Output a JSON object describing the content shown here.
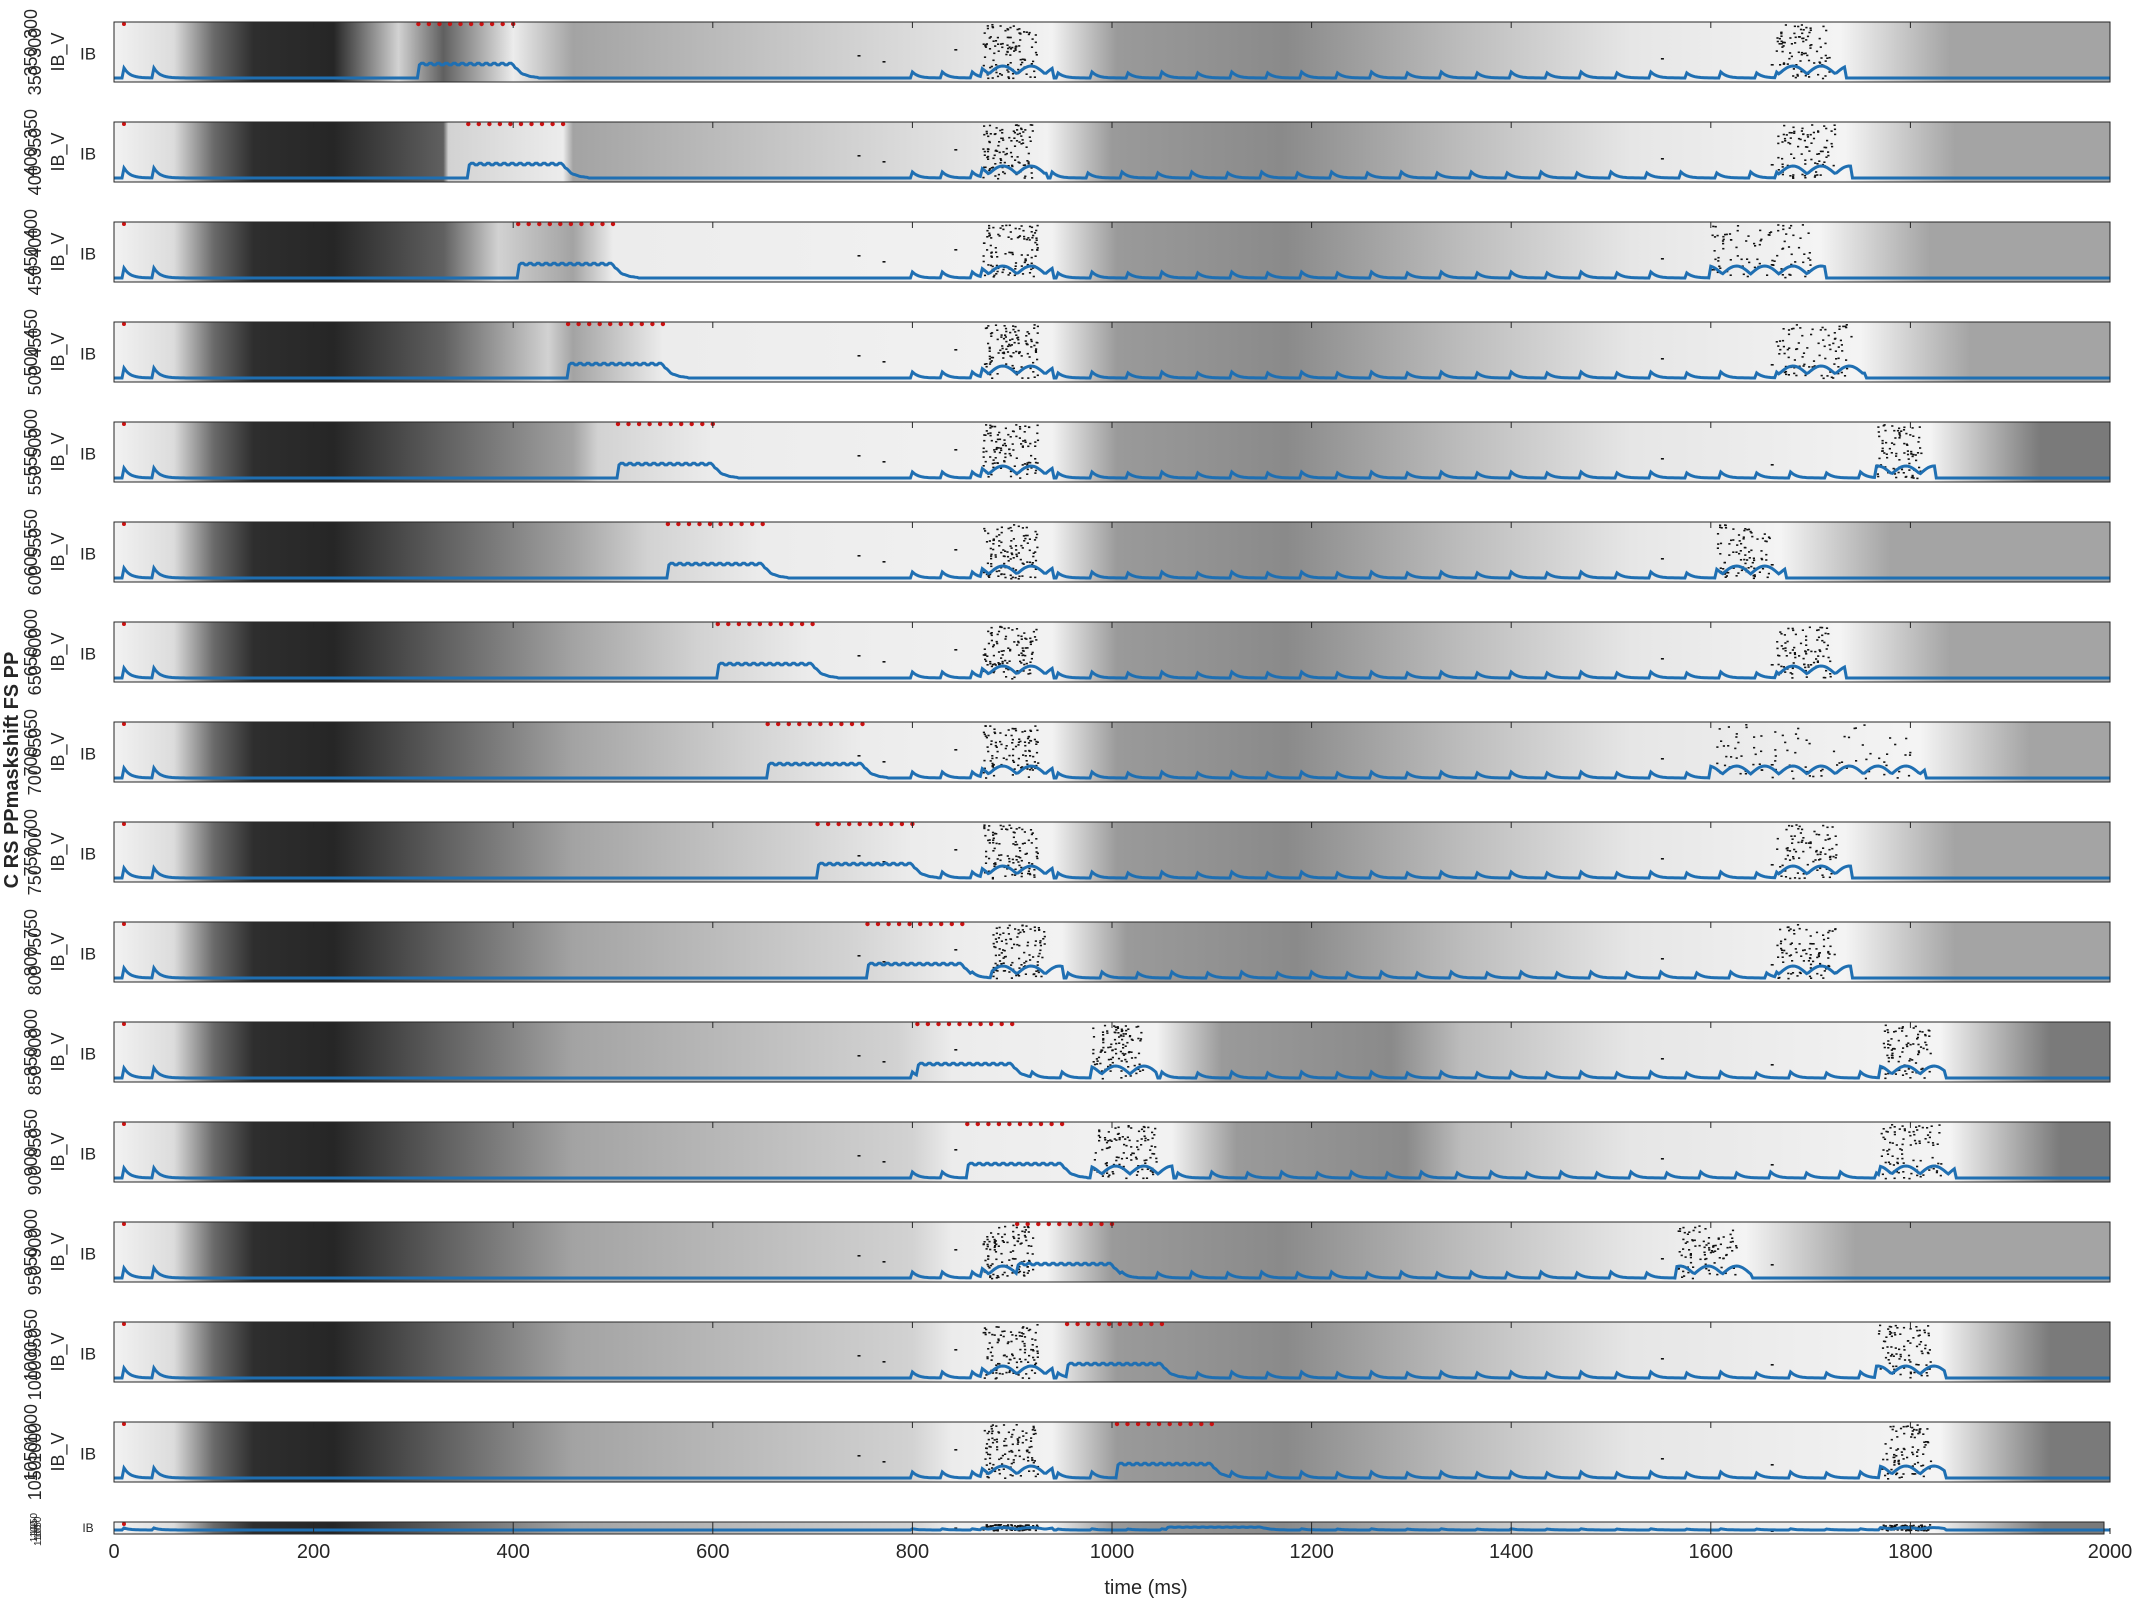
{
  "chart_data": {
    "type": "heatmap",
    "title": "",
    "xlabel": "time (ms)",
    "ylabel": "C RS PPmaskshift FS PP",
    "xlim": [
      0,
      2000
    ],
    "xticks": [
      0,
      200,
      400,
      600,
      800,
      1000,
      1200,
      1400,
      1600,
      1800,
      2000
    ],
    "grid": false,
    "legend": "none",
    "trace_label": "IB_V",
    "row_label": "IB",
    "colors": {
      "trace": "#1f6fb2",
      "stim_marker": "#cc1111",
      "raster": "#111111",
      "axis": "#262626"
    },
    "panels": [
      {
        "shift": 300,
        "pulse_start": 305,
        "pulse_end": 400,
        "bursts": [
          [
            870,
            925
          ],
          [
            1665,
            1720
          ]
        ],
        "tick_labels": [
          "300",
          "300",
          "350",
          "350"
        ]
      },
      {
        "shift": 350,
        "pulse_start": 355,
        "pulse_end": 450,
        "bursts": [
          [
            870,
            920
          ],
          [
            1665,
            1725
          ]
        ],
        "tick_labels": [
          "350",
          "350",
          "400",
          "400"
        ]
      },
      {
        "shift": 400,
        "pulse_start": 405,
        "pulse_end": 500,
        "bursts": [
          [
            870,
            925
          ],
          [
            1600,
            1700
          ]
        ],
        "tick_labels": [
          "400",
          "400",
          "450",
          "450"
        ]
      },
      {
        "shift": 450,
        "pulse_start": 455,
        "pulse_end": 550,
        "bursts": [
          [
            870,
            925
          ],
          [
            1665,
            1740
          ]
        ],
        "tick_labels": [
          "450",
          "450",
          "500",
          "500"
        ]
      },
      {
        "shift": 500,
        "pulse_start": 505,
        "pulse_end": 600,
        "bursts": [
          [
            870,
            925
          ],
          [
            1765,
            1810
          ]
        ],
        "tick_labels": [
          "500",
          "500",
          "550",
          "550"
        ]
      },
      {
        "shift": 550,
        "pulse_start": 555,
        "pulse_end": 650,
        "bursts": [
          [
            870,
            925
          ],
          [
            1605,
            1660
          ]
        ],
        "tick_labels": [
          "550",
          "550",
          "600",
          "600"
        ]
      },
      {
        "shift": 600,
        "pulse_start": 605,
        "pulse_end": 700,
        "bursts": [
          [
            870,
            925
          ],
          [
            1665,
            1720
          ]
        ],
        "tick_labels": [
          "600",
          "600",
          "650",
          "650"
        ]
      },
      {
        "shift": 650,
        "pulse_start": 655,
        "pulse_end": 750,
        "bursts": [
          [
            870,
            925
          ],
          [
            1600,
            1800
          ]
        ],
        "tick_labels": [
          "650",
          "650",
          "700",
          "700"
        ]
      },
      {
        "shift": 700,
        "pulse_start": 705,
        "pulse_end": 800,
        "bursts": [
          [
            870,
            925
          ],
          [
            1665,
            1725
          ]
        ],
        "tick_labels": [
          "700",
          "700",
          "750",
          "750"
        ]
      },
      {
        "shift": 750,
        "pulse_start": 755,
        "pulse_end": 850,
        "bursts": [
          [
            880,
            935
          ],
          [
            1665,
            1725
          ]
        ],
        "tick_labels": [
          "750",
          "750",
          "800",
          "800"
        ]
      },
      {
        "shift": 800,
        "pulse_start": 805,
        "pulse_end": 900,
        "bursts": [
          [
            980,
            1030
          ],
          [
            1770,
            1820
          ]
        ],
        "tick_labels": [
          "800",
          "800",
          "850",
          "850"
        ]
      },
      {
        "shift": 850,
        "pulse_start": 855,
        "pulse_end": 950,
        "bursts": [
          [
            980,
            1045
          ],
          [
            1770,
            1830
          ]
        ],
        "tick_labels": [
          "850",
          "850",
          "900",
          "900"
        ]
      },
      {
        "shift": 900,
        "pulse_start": 905,
        "pulse_end": 1000,
        "bursts": [
          [
            870,
            920
          ],
          [
            1565,
            1625
          ]
        ],
        "tick_labels": [
          "900",
          "900",
          "950",
          "950"
        ]
      },
      {
        "shift": 950,
        "pulse_start": 955,
        "pulse_end": 1050,
        "bursts": [
          [
            870,
            925
          ],
          [
            1765,
            1820
          ]
        ],
        "tick_labels": [
          "950",
          "950",
          "1000",
          "1000"
        ]
      },
      {
        "shift": 1000,
        "pulse_start": 1005,
        "pulse_end": 1100,
        "bursts": [
          [
            870,
            925
          ],
          [
            1770,
            1820
          ]
        ],
        "tick_labels": [
          "1000",
          "1000",
          "1050",
          "1050"
        ]
      },
      {
        "shift": 1050,
        "pulse_start": 1055,
        "pulse_end": 1150,
        "bursts": [
          [
            870,
            925
          ],
          [
            1770,
            1820
          ]
        ],
        "tick_labels": [
          "1050",
          "1050",
          "1100",
          "1100"
        ]
      }
    ]
  }
}
